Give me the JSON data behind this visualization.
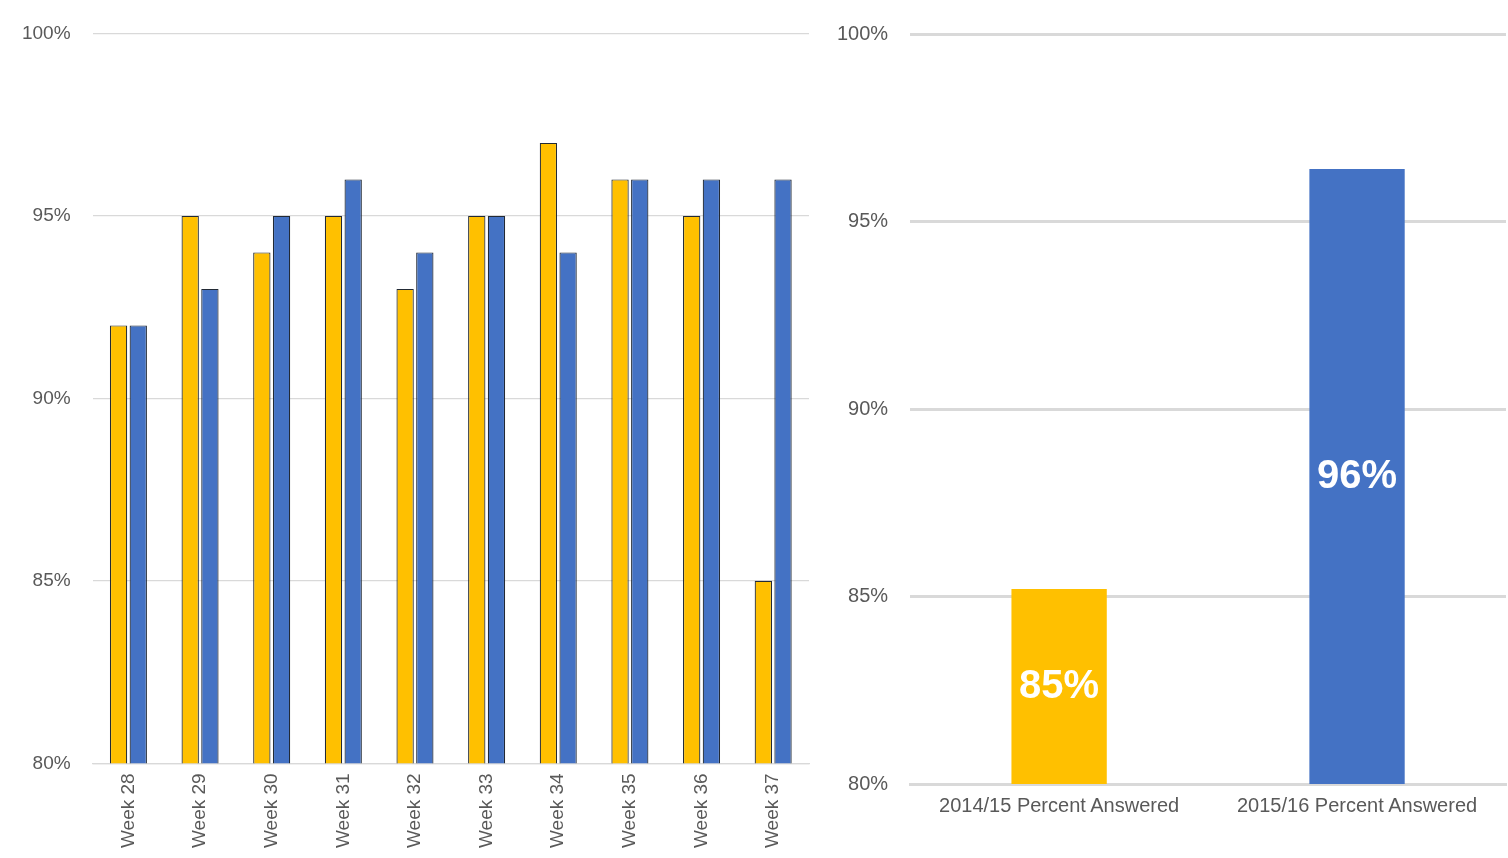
{
  "chart_data": [
    {
      "type": "bar",
      "categories": [
        "Week 28",
        "Week 29",
        "Week 30",
        "Week 31",
        "Week 32",
        "Week 33",
        "Week 34",
        "Week 35",
        "Week 36",
        "Week 37"
      ],
      "series": [
        {
          "color": "#ffc000",
          "values": [
            92,
            95,
            94,
            95,
            93,
            95,
            97,
            96,
            95,
            85
          ]
        },
        {
          "color": "#4472c4",
          "values": [
            92,
            93,
            95,
            96,
            94,
            95,
            94,
            96,
            96,
            96
          ]
        }
      ],
      "ylim": [
        80,
        100
      ],
      "yticks": [
        {
          "value": 80,
          "label": "80%"
        },
        {
          "value": 85,
          "label": "85%"
        },
        {
          "value": 90,
          "label": "90%"
        },
        {
          "value": 95,
          "label": "95%"
        },
        {
          "value": 100,
          "label": "100%"
        }
      ],
      "grid": "y",
      "legend": false
    },
    {
      "type": "bar",
      "categories": [
        "2014/15 Percent Answered",
        "2015/16 Percent Answered"
      ],
      "values": [
        85.2,
        96.4
      ],
      "colors": [
        "#ffc000",
        "#4472c4"
      ],
      "value_labels": [
        "85%",
        "96%"
      ],
      "ylim": [
        80,
        100
      ],
      "yticks": [
        {
          "value": 80,
          "label": "80%"
        },
        {
          "value": 85,
          "label": "85%"
        },
        {
          "value": 90,
          "label": "90%"
        },
        {
          "value": 95,
          "label": "95%"
        },
        {
          "value": 100,
          "label": "100%"
        }
      ],
      "grid": "y",
      "legend": false
    }
  ]
}
